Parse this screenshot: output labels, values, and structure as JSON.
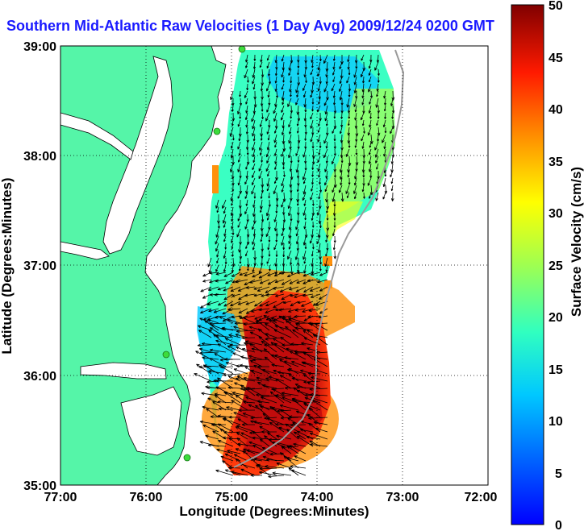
{
  "title": "Southern Mid-Atlantic Raw Velocities (1 Day Avg) 2009/12/24 0200 GMT",
  "x_axis": {
    "label": "Longitude (Degrees:Minutes)",
    "ticks": [
      "77:00",
      "76:00",
      "75:00",
      "74:00",
      "73:00",
      "72:00"
    ],
    "range": [
      -77,
      -72
    ]
  },
  "y_axis": {
    "label": "Latitude (Degrees:Minutes)",
    "ticks": [
      "39:00",
      "38:00",
      "37:00",
      "36:00",
      "35:00"
    ],
    "range": [
      35,
      39
    ]
  },
  "colorbar": {
    "label": "Surface Velocity (cm/s)",
    "ticks": [
      "50",
      "45",
      "40",
      "35",
      "30",
      "25",
      "20",
      "15",
      "10",
      "5",
      "0"
    ],
    "range": [
      0,
      50
    ]
  },
  "colors": {
    "land": "#55f5a8",
    "title": "#1a1aff",
    "stations": "#3cdc3c",
    "grid": "#000000"
  }
}
